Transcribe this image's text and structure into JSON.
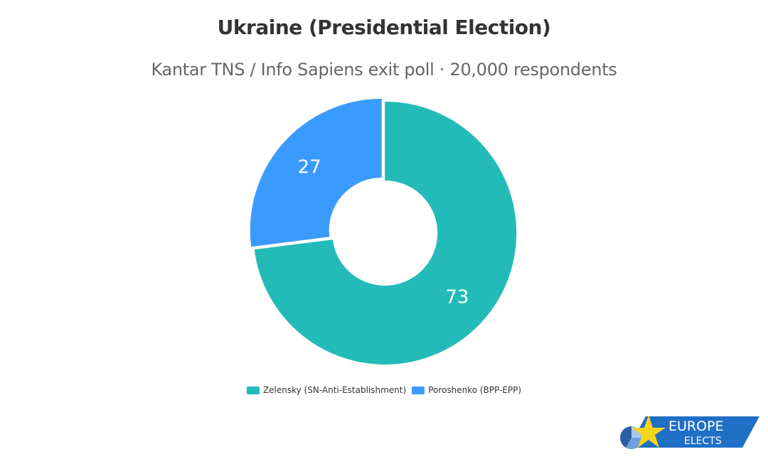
{
  "chart_data": {
    "type": "pie",
    "style": "donut",
    "title": "Ukraine (Presidential Election)",
    "subtitle": "Kantar TNS / Info Sapiens exit poll · 20,000 respondents",
    "slices": [
      {
        "name": "Zelensky (SN-Anti-Establishment)",
        "value": 73,
        "label": "73",
        "color": "#23bbb7"
      },
      {
        "name": "Poroshenko (BPP-EPP)",
        "value": 27,
        "label": "27",
        "color": "#3a9bff"
      }
    ],
    "legend_placement": "bottom",
    "start_angle_deg": 0
  },
  "branding": {
    "logo_line1": "EUROPE",
    "logo_line2": "ELECTS",
    "logo_color": "#1f6fc4",
    "star_color": "#f7d51d"
  }
}
